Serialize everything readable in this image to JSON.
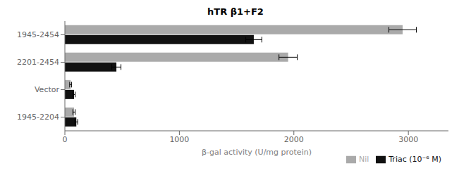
{
  "chart_data": {
    "type": "bar",
    "orientation": "horizontal",
    "title": "hTR β1+F2",
    "xlabel": "β-gal activity (U/mg protein)",
    "categories": [
      "1945-2204",
      "Vector",
      "2201-2454",
      "1945-2454"
    ],
    "series": [
      {
        "name": "Nil",
        "color": "#aaaaaa",
        "values": [
          80,
          50,
          1950,
          2950
        ],
        "errors": [
          10,
          8,
          80,
          120
        ]
      },
      {
        "name": "Triac (10⁻⁶ M)",
        "color": "#111111",
        "values": [
          100,
          80,
          450,
          1650
        ],
        "errors": [
          12,
          10,
          40,
          70
        ]
      }
    ],
    "xlim": [
      0,
      3350
    ],
    "xticks": [
      0,
      1000,
      2000,
      3000
    ],
    "legend": "lower right"
  }
}
